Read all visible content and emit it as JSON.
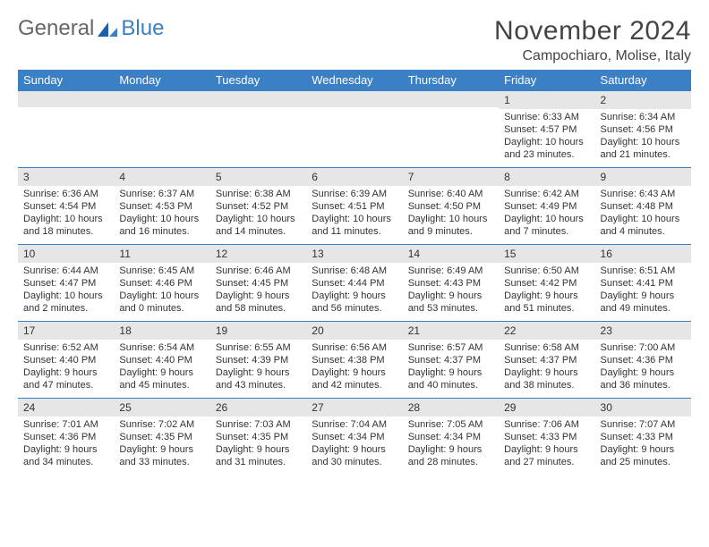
{
  "logo": {
    "text1": "General",
    "text2": "Blue"
  },
  "title": "November 2024",
  "location": "Campochiaro, Molise, Italy",
  "colors": {
    "header_bg": "#3b7fc4",
    "header_text": "#ffffff",
    "daynum_bg": "#e6e6e6",
    "border": "#3b7fc4",
    "text": "#333333",
    "background": "#ffffff"
  },
  "dayHeaders": [
    "Sunday",
    "Monday",
    "Tuesday",
    "Wednesday",
    "Thursday",
    "Friday",
    "Saturday"
  ],
  "weeks": [
    [
      {
        "num": "",
        "sunrise": "",
        "sunset": "",
        "daylight1": "",
        "daylight2": ""
      },
      {
        "num": "",
        "sunrise": "",
        "sunset": "",
        "daylight1": "",
        "daylight2": ""
      },
      {
        "num": "",
        "sunrise": "",
        "sunset": "",
        "daylight1": "",
        "daylight2": ""
      },
      {
        "num": "",
        "sunrise": "",
        "sunset": "",
        "daylight1": "",
        "daylight2": ""
      },
      {
        "num": "",
        "sunrise": "",
        "sunset": "",
        "daylight1": "",
        "daylight2": ""
      },
      {
        "num": "1",
        "sunrise": "Sunrise: 6:33 AM",
        "sunset": "Sunset: 4:57 PM",
        "daylight1": "Daylight: 10 hours",
        "daylight2": "and 23 minutes."
      },
      {
        "num": "2",
        "sunrise": "Sunrise: 6:34 AM",
        "sunset": "Sunset: 4:56 PM",
        "daylight1": "Daylight: 10 hours",
        "daylight2": "and 21 minutes."
      }
    ],
    [
      {
        "num": "3",
        "sunrise": "Sunrise: 6:36 AM",
        "sunset": "Sunset: 4:54 PM",
        "daylight1": "Daylight: 10 hours",
        "daylight2": "and 18 minutes."
      },
      {
        "num": "4",
        "sunrise": "Sunrise: 6:37 AM",
        "sunset": "Sunset: 4:53 PM",
        "daylight1": "Daylight: 10 hours",
        "daylight2": "and 16 minutes."
      },
      {
        "num": "5",
        "sunrise": "Sunrise: 6:38 AM",
        "sunset": "Sunset: 4:52 PM",
        "daylight1": "Daylight: 10 hours",
        "daylight2": "and 14 minutes."
      },
      {
        "num": "6",
        "sunrise": "Sunrise: 6:39 AM",
        "sunset": "Sunset: 4:51 PM",
        "daylight1": "Daylight: 10 hours",
        "daylight2": "and 11 minutes."
      },
      {
        "num": "7",
        "sunrise": "Sunrise: 6:40 AM",
        "sunset": "Sunset: 4:50 PM",
        "daylight1": "Daylight: 10 hours",
        "daylight2": "and 9 minutes."
      },
      {
        "num": "8",
        "sunrise": "Sunrise: 6:42 AM",
        "sunset": "Sunset: 4:49 PM",
        "daylight1": "Daylight: 10 hours",
        "daylight2": "and 7 minutes."
      },
      {
        "num": "9",
        "sunrise": "Sunrise: 6:43 AM",
        "sunset": "Sunset: 4:48 PM",
        "daylight1": "Daylight: 10 hours",
        "daylight2": "and 4 minutes."
      }
    ],
    [
      {
        "num": "10",
        "sunrise": "Sunrise: 6:44 AM",
        "sunset": "Sunset: 4:47 PM",
        "daylight1": "Daylight: 10 hours",
        "daylight2": "and 2 minutes."
      },
      {
        "num": "11",
        "sunrise": "Sunrise: 6:45 AM",
        "sunset": "Sunset: 4:46 PM",
        "daylight1": "Daylight: 10 hours",
        "daylight2": "and 0 minutes."
      },
      {
        "num": "12",
        "sunrise": "Sunrise: 6:46 AM",
        "sunset": "Sunset: 4:45 PM",
        "daylight1": "Daylight: 9 hours",
        "daylight2": "and 58 minutes."
      },
      {
        "num": "13",
        "sunrise": "Sunrise: 6:48 AM",
        "sunset": "Sunset: 4:44 PM",
        "daylight1": "Daylight: 9 hours",
        "daylight2": "and 56 minutes."
      },
      {
        "num": "14",
        "sunrise": "Sunrise: 6:49 AM",
        "sunset": "Sunset: 4:43 PM",
        "daylight1": "Daylight: 9 hours",
        "daylight2": "and 53 minutes."
      },
      {
        "num": "15",
        "sunrise": "Sunrise: 6:50 AM",
        "sunset": "Sunset: 4:42 PM",
        "daylight1": "Daylight: 9 hours",
        "daylight2": "and 51 minutes."
      },
      {
        "num": "16",
        "sunrise": "Sunrise: 6:51 AM",
        "sunset": "Sunset: 4:41 PM",
        "daylight1": "Daylight: 9 hours",
        "daylight2": "and 49 minutes."
      }
    ],
    [
      {
        "num": "17",
        "sunrise": "Sunrise: 6:52 AM",
        "sunset": "Sunset: 4:40 PM",
        "daylight1": "Daylight: 9 hours",
        "daylight2": "and 47 minutes."
      },
      {
        "num": "18",
        "sunrise": "Sunrise: 6:54 AM",
        "sunset": "Sunset: 4:40 PM",
        "daylight1": "Daylight: 9 hours",
        "daylight2": "and 45 minutes."
      },
      {
        "num": "19",
        "sunrise": "Sunrise: 6:55 AM",
        "sunset": "Sunset: 4:39 PM",
        "daylight1": "Daylight: 9 hours",
        "daylight2": "and 43 minutes."
      },
      {
        "num": "20",
        "sunrise": "Sunrise: 6:56 AM",
        "sunset": "Sunset: 4:38 PM",
        "daylight1": "Daylight: 9 hours",
        "daylight2": "and 42 minutes."
      },
      {
        "num": "21",
        "sunrise": "Sunrise: 6:57 AM",
        "sunset": "Sunset: 4:37 PM",
        "daylight1": "Daylight: 9 hours",
        "daylight2": "and 40 minutes."
      },
      {
        "num": "22",
        "sunrise": "Sunrise: 6:58 AM",
        "sunset": "Sunset: 4:37 PM",
        "daylight1": "Daylight: 9 hours",
        "daylight2": "and 38 minutes."
      },
      {
        "num": "23",
        "sunrise": "Sunrise: 7:00 AM",
        "sunset": "Sunset: 4:36 PM",
        "daylight1": "Daylight: 9 hours",
        "daylight2": "and 36 minutes."
      }
    ],
    [
      {
        "num": "24",
        "sunrise": "Sunrise: 7:01 AM",
        "sunset": "Sunset: 4:36 PM",
        "daylight1": "Daylight: 9 hours",
        "daylight2": "and 34 minutes."
      },
      {
        "num": "25",
        "sunrise": "Sunrise: 7:02 AM",
        "sunset": "Sunset: 4:35 PM",
        "daylight1": "Daylight: 9 hours",
        "daylight2": "and 33 minutes."
      },
      {
        "num": "26",
        "sunrise": "Sunrise: 7:03 AM",
        "sunset": "Sunset: 4:35 PM",
        "daylight1": "Daylight: 9 hours",
        "daylight2": "and 31 minutes."
      },
      {
        "num": "27",
        "sunrise": "Sunrise: 7:04 AM",
        "sunset": "Sunset: 4:34 PM",
        "daylight1": "Daylight: 9 hours",
        "daylight2": "and 30 minutes."
      },
      {
        "num": "28",
        "sunrise": "Sunrise: 7:05 AM",
        "sunset": "Sunset: 4:34 PM",
        "daylight1": "Daylight: 9 hours",
        "daylight2": "and 28 minutes."
      },
      {
        "num": "29",
        "sunrise": "Sunrise: 7:06 AM",
        "sunset": "Sunset: 4:33 PM",
        "daylight1": "Daylight: 9 hours",
        "daylight2": "and 27 minutes."
      },
      {
        "num": "30",
        "sunrise": "Sunrise: 7:07 AM",
        "sunset": "Sunset: 4:33 PM",
        "daylight1": "Daylight: 9 hours",
        "daylight2": "and 25 minutes."
      }
    ]
  ]
}
